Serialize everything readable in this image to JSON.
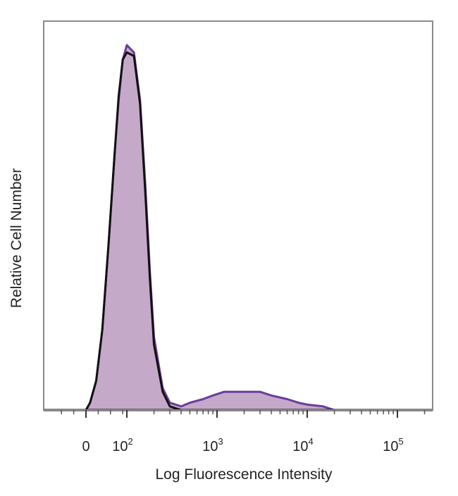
{
  "chart_data": {
    "type": "area",
    "title": "",
    "xlabel": "Log Fluorescence Intensity",
    "ylabel": "Relative Cell Number",
    "x_scale": "biexponential",
    "x_ticks": [
      {
        "value": 0,
        "base": "0",
        "exp": ""
      },
      {
        "value": 100,
        "base": "10",
        "exp": "2"
      },
      {
        "value": 1000,
        "base": "10",
        "exp": "3"
      },
      {
        "value": 10000,
        "base": "10",
        "exp": "4"
      },
      {
        "value": 100000,
        "base": "10",
        "exp": "5"
      }
    ],
    "y_range": [
      0,
      100
    ],
    "grid": false,
    "legend": "none",
    "series": [
      {
        "role": "stained",
        "style": "filled",
        "color": "#6a3d9a",
        "fill": "#c5a9c9",
        "points": [
          [
            0,
            0
          ],
          [
            10,
            2
          ],
          [
            25,
            8
          ],
          [
            40,
            22
          ],
          [
            55,
            45
          ],
          [
            70,
            70
          ],
          [
            80,
            85
          ],
          [
            90,
            96
          ],
          [
            100,
            100
          ],
          [
            120,
            98
          ],
          [
            140,
            85
          ],
          [
            160,
            62
          ],
          [
            180,
            38
          ],
          [
            200,
            20
          ],
          [
            250,
            6
          ],
          [
            300,
            2
          ],
          [
            400,
            1
          ],
          [
            500,
            2
          ],
          [
            700,
            3
          ],
          [
            900,
            4
          ],
          [
            1200,
            5
          ],
          [
            1500,
            5
          ],
          [
            2000,
            5
          ],
          [
            3000,
            5
          ],
          [
            4000,
            4
          ],
          [
            6000,
            3
          ],
          [
            8000,
            2
          ],
          [
            10000,
            1.5
          ],
          [
            15000,
            1
          ],
          [
            20000,
            0
          ]
        ]
      },
      {
        "role": "control",
        "style": "line",
        "color": "#111111",
        "points": [
          [
            0,
            0
          ],
          [
            10,
            2
          ],
          [
            25,
            8
          ],
          [
            40,
            22
          ],
          [
            55,
            45
          ],
          [
            70,
            70
          ],
          [
            80,
            86
          ],
          [
            90,
            96
          ],
          [
            100,
            98
          ],
          [
            120,
            97
          ],
          [
            140,
            84
          ],
          [
            160,
            60
          ],
          [
            180,
            36
          ],
          [
            200,
            18
          ],
          [
            250,
            5
          ],
          [
            300,
            1
          ],
          [
            400,
            0
          ]
        ]
      }
    ]
  }
}
